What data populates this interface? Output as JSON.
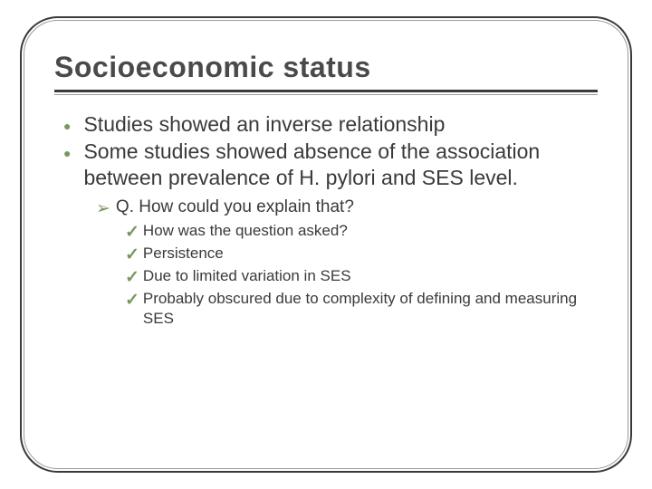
{
  "title": "Socioeconomic status",
  "colors": {
    "text": "#3a3a3a",
    "bullet_accent": "#7a9660",
    "frame_outer": "#3a3a3a",
    "frame_inner": "#9a9a9a",
    "background": "#ffffff"
  },
  "typography": {
    "title_fontsize": 32,
    "l1_fontsize": 23,
    "l2_fontsize": 19,
    "l3_fontsize": 17
  },
  "bullets_l1": [
    {
      "text": "Studies showed an inverse relationship"
    },
    {
      "text": "Some studies showed absence of the association between prevalence of H. pylori and SES level."
    }
  ],
  "bullets_l2": [
    {
      "text": "Q. How could you explain that?"
    }
  ],
  "bullets_l3": [
    {
      "text": "How was the question asked?"
    },
    {
      "text": "Persistence"
    },
    {
      "text": "Due to limited variation in SES"
    },
    {
      "text": "Probably obscured due to complexity of defining and measuring SES"
    }
  ],
  "icons": {
    "l1": "●",
    "l2": "➢",
    "l3": "✓"
  }
}
